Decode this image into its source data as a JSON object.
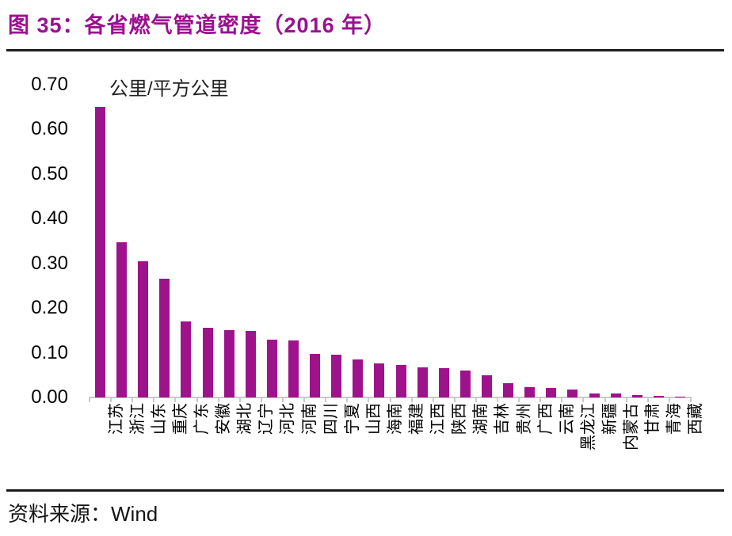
{
  "figure": {
    "title": "图 35：各省燃气管道密度（2016 年）",
    "title_color": "#9C1090",
    "source_label": "资料来源：Wind"
  },
  "chart_data": {
    "type": "bar",
    "title": "各省燃气管道密度（2016 年）",
    "unit_label": "公里/平方公里",
    "categories": [
      "江苏",
      "浙江",
      "山东",
      "重庆",
      "广东",
      "安徽",
      "湖北",
      "辽宁",
      "河北",
      "河南",
      "四川",
      "宁夏",
      "山西",
      "海南",
      "福建",
      "江西",
      "陕西",
      "湖南",
      "吉林",
      "贵州",
      "广西",
      "云南",
      "黑龙江",
      "新疆",
      "内蒙古",
      "甘肃",
      "青海",
      "西藏"
    ],
    "values": [
      0.65,
      0.347,
      0.305,
      0.265,
      0.17,
      0.155,
      0.15,
      0.149,
      0.13,
      0.127,
      0.097,
      0.095,
      0.085,
      0.076,
      0.072,
      0.068,
      0.066,
      0.061,
      0.05,
      0.031,
      0.023,
      0.021,
      0.017,
      0.009,
      0.008,
      0.006,
      0.004,
      0.001
    ],
    "bar_color": "#9E138C",
    "ylim": [
      0,
      0.7
    ],
    "yticks": [
      "0.00",
      "0.10",
      "0.20",
      "0.30",
      "0.40",
      "0.50",
      "0.60",
      "0.70"
    ],
    "ylabel": "",
    "xlabel": "",
    "xlabel_rotation_deg": -90,
    "grid": "off",
    "legend": "none"
  }
}
